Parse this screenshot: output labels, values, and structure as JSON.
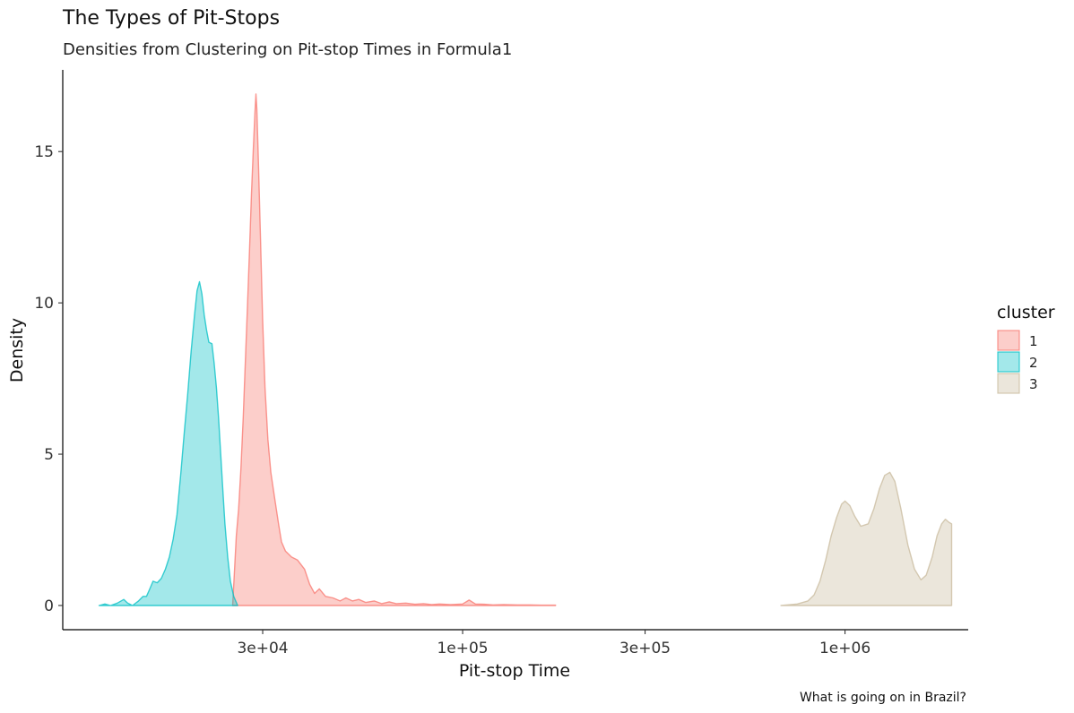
{
  "chart_data": {
    "type": "area",
    "title": "The Types of Pit-Stops",
    "subtitle": "Densities from Clustering on Pit-stop Times in Formula1",
    "caption": "What is going on in Brazil?",
    "xlabel": "Pit-stop Time",
    "ylabel": "Density",
    "x_scale": "log10",
    "xlim": [
      9000,
      2100000
    ],
    "ylim": [
      -0.8,
      17.7
    ],
    "x_ticks": [
      {
        "value": 30000,
        "label": "3e+04"
      },
      {
        "value": 100000,
        "label": "1e+05"
      },
      {
        "value": 300000,
        "label": "3e+05"
      },
      {
        "value": 1000000,
        "label": "1e+06"
      }
    ],
    "y_ticks": [
      {
        "value": 0,
        "label": "0"
      },
      {
        "value": 5,
        "label": "5"
      },
      {
        "value": 10,
        "label": "10"
      },
      {
        "value": 15,
        "label": "15"
      }
    ],
    "grid": false,
    "legend": {
      "title": "cluster",
      "position": "right"
    },
    "series": [
      {
        "name": "1",
        "fill": "#f8766d",
        "stroke": "#f8766d",
        "points": [
          [
            25030,
            0.0
          ],
          [
            25280,
            1.0
          ],
          [
            25600,
            2.3
          ],
          [
            25950,
            3.2
          ],
          [
            26310,
            4.5
          ],
          [
            26680,
            6.2
          ],
          [
            27010,
            8.0
          ],
          [
            27340,
            9.7
          ],
          [
            27720,
            11.8
          ],
          [
            28040,
            13.6
          ],
          [
            28360,
            15.1
          ],
          [
            28640,
            16.3
          ],
          [
            28800,
            16.9
          ],
          [
            28970,
            16.4
          ],
          [
            29240,
            14.6
          ],
          [
            29610,
            12.1
          ],
          [
            29980,
            9.5
          ],
          [
            30420,
            7.2
          ],
          [
            30950,
            5.5
          ],
          [
            31500,
            4.4
          ],
          [
            32200,
            3.6
          ],
          [
            33000,
            2.7
          ],
          [
            33600,
            2.1
          ],
          [
            34400,
            1.8
          ],
          [
            35700,
            1.6
          ],
          [
            37000,
            1.5
          ],
          [
            38600,
            1.2
          ],
          [
            39800,
            0.7
          ],
          [
            41000,
            0.4
          ],
          [
            42200,
            0.55
          ],
          [
            43800,
            0.3
          ],
          [
            45800,
            0.25
          ],
          [
            47800,
            0.15
          ],
          [
            49500,
            0.25
          ],
          [
            51500,
            0.15
          ],
          [
            53500,
            0.2
          ],
          [
            55800,
            0.1
          ],
          [
            58700,
            0.15
          ],
          [
            61400,
            0.06
          ],
          [
            64300,
            0.12
          ],
          [
            67000,
            0.06
          ],
          [
            71000,
            0.08
          ],
          [
            75000,
            0.04
          ],
          [
            79000,
            0.06
          ],
          [
            83000,
            0.03
          ],
          [
            87000,
            0.05
          ],
          [
            93000,
            0.03
          ],
          [
            100000,
            0.05
          ],
          [
            104000,
            0.18
          ],
          [
            108000,
            0.05
          ],
          [
            114000,
            0.04
          ],
          [
            120000,
            0.02
          ],
          [
            128000,
            0.03
          ],
          [
            139000,
            0.02
          ],
          [
            150000,
            0.02
          ],
          [
            160000,
            0.01
          ],
          [
            175000,
            0.01
          ]
        ]
      },
      {
        "name": "2",
        "fill": "#00bfc4",
        "stroke": "#00bfc4",
        "points": [
          [
            11200,
            0.0
          ],
          [
            11600,
            0.05
          ],
          [
            12000,
            0.0
          ],
          [
            12500,
            0.08
          ],
          [
            13000,
            0.2
          ],
          [
            13300,
            0.08
          ],
          [
            13700,
            0.0
          ],
          [
            14200,
            0.15
          ],
          [
            14600,
            0.3
          ],
          [
            14900,
            0.3
          ],
          [
            15200,
            0.55
          ],
          [
            15500,
            0.8
          ],
          [
            15900,
            0.75
          ],
          [
            16300,
            0.9
          ],
          [
            16700,
            1.2
          ],
          [
            17100,
            1.6
          ],
          [
            17500,
            2.2
          ],
          [
            17900,
            3.0
          ],
          [
            18300,
            4.3
          ],
          [
            18700,
            5.7
          ],
          [
            19100,
            7.0
          ],
          [
            19500,
            8.4
          ],
          [
            19900,
            9.6
          ],
          [
            20200,
            10.4
          ],
          [
            20500,
            10.7
          ],
          [
            20800,
            10.3
          ],
          [
            21100,
            9.6
          ],
          [
            21400,
            9.1
          ],
          [
            21700,
            8.7
          ],
          [
            22100,
            8.65
          ],
          [
            22400,
            8.0
          ],
          [
            22700,
            7.2
          ],
          [
            23000,
            6.2
          ],
          [
            23300,
            5.0
          ],
          [
            23600,
            3.8
          ],
          [
            23900,
            2.7
          ],
          [
            24300,
            1.6
          ],
          [
            24700,
            0.8
          ],
          [
            25200,
            0.3
          ],
          [
            25800,
            0.0
          ]
        ]
      },
      {
        "name": "3",
        "fill": "#c8b99c",
        "stroke": "#c8b99c",
        "points": [
          [
            680000,
            0.0
          ],
          [
            750000,
            0.05
          ],
          [
            800000,
            0.15
          ],
          [
            830000,
            0.35
          ],
          [
            860000,
            0.8
          ],
          [
            890000,
            1.5
          ],
          [
            920000,
            2.3
          ],
          [
            950000,
            2.9
          ],
          [
            980000,
            3.35
          ],
          [
            1000000,
            3.45
          ],
          [
            1030000,
            3.3
          ],
          [
            1060000,
            2.95
          ],
          [
            1100000,
            2.62
          ],
          [
            1150000,
            2.7
          ],
          [
            1190000,
            3.2
          ],
          [
            1230000,
            3.85
          ],
          [
            1270000,
            4.3
          ],
          [
            1310000,
            4.4
          ],
          [
            1350000,
            4.1
          ],
          [
            1400000,
            3.2
          ],
          [
            1460000,
            2.0
          ],
          [
            1520000,
            1.2
          ],
          [
            1580000,
            0.85
          ],
          [
            1630000,
            1.0
          ],
          [
            1690000,
            1.6
          ],
          [
            1740000,
            2.3
          ],
          [
            1790000,
            2.7
          ],
          [
            1830000,
            2.85
          ],
          [
            1870000,
            2.75
          ],
          [
            1900000,
            2.7
          ]
        ]
      }
    ]
  }
}
